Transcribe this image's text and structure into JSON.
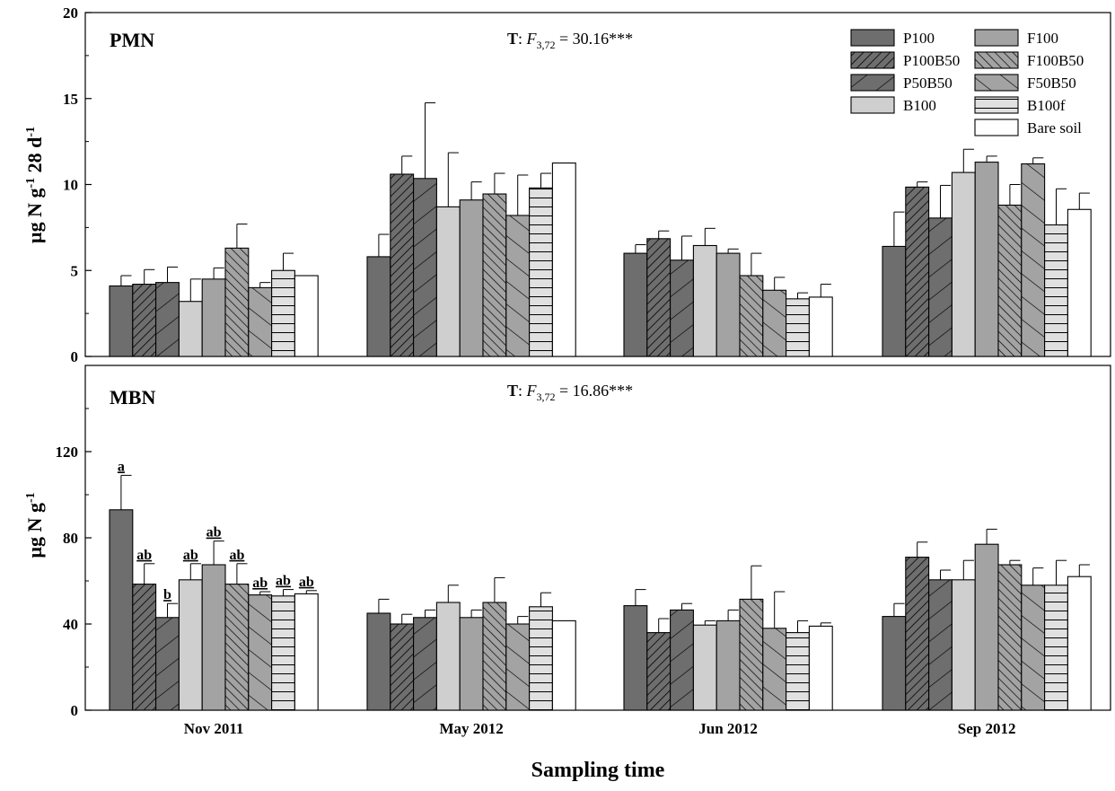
{
  "chart_data": [
    {
      "type": "bar",
      "panel_label": "PMN",
      "ylabel_main": "µg N g",
      "ylabel_sup1": "-1",
      "ylabel_mid": " 28 d",
      "ylabel_sup2": "-1",
      "stat": {
        "lead": "T",
        "colon": ": ",
        "f": "F",
        "sub": "3,72",
        "value": " = 30.16***"
      },
      "ylim": [
        0,
        20
      ],
      "yticks": [
        "0",
        "5",
        "10",
        "15",
        "20"
      ],
      "categories": [
        "Nov 2011",
        "May 2012",
        "Jun 2012",
        "Sep 2012"
      ],
      "series": [
        {
          "name": "P100",
          "values": [
            4.1,
            5.8,
            6.0,
            6.4
          ],
          "errors": [
            0.6,
            1.3,
            0.5,
            2.0
          ]
        },
        {
          "name": "P100B50",
          "values": [
            4.2,
            10.6,
            6.85,
            9.85
          ],
          "errors": [
            0.85,
            1.05,
            0.45,
            0.3
          ]
        },
        {
          "name": "P50B50",
          "values": [
            4.3,
            10.35,
            5.6,
            8.05
          ],
          "errors": [
            0.9,
            4.4,
            1.4,
            1.9
          ]
        },
        {
          "name": "B100",
          "values": [
            3.2,
            8.7,
            6.45,
            10.7
          ],
          "errors": [
            1.3,
            3.15,
            1.0,
            1.35
          ]
        },
        {
          "name": "F100",
          "values": [
            4.5,
            9.1,
            6.0,
            11.3
          ],
          "errors": [
            0.65,
            1.05,
            0.25,
            0.35
          ]
        },
        {
          "name": "F100B50",
          "values": [
            6.3,
            9.45,
            4.7,
            8.8
          ],
          "errors": [
            1.4,
            1.2,
            1.3,
            1.2
          ]
        },
        {
          "name": "F50B50",
          "values": [
            4.0,
            8.2,
            3.85,
            11.2
          ],
          "errors": [
            0.3,
            2.35,
            0.75,
            0.35
          ]
        },
        {
          "name": "B100f",
          "values": [
            5.0,
            9.8,
            3.35,
            7.65
          ],
          "errors": [
            1.0,
            0.85,
            0.35,
            2.1
          ]
        },
        {
          "name": "Bare soil",
          "values": [
            4.7,
            11.25,
            3.45,
            8.55
          ],
          "errors": [
            0.0,
            0.0,
            0.75,
            0.95
          ]
        }
      ]
    },
    {
      "type": "bar",
      "panel_label": "MBN",
      "ylabel_main": "µg N g",
      "ylabel_sup1": "-1",
      "stat": {
        "lead": "T",
        "colon": ": ",
        "f": "F",
        "sub": "3,72",
        "value": " = 16.86***"
      },
      "ylim": [
        0,
        160
      ],
      "yticks": [
        "0",
        "40",
        "80",
        "120"
      ],
      "categories": [
        "Nov 2011",
        "May 2012",
        "Jun 2012",
        "Sep 2012"
      ],
      "series": [
        {
          "name": "P100",
          "values": [
            93,
            45,
            48.5,
            43.5
          ],
          "errors": [
            16,
            6.5,
            7.5,
            6
          ]
        },
        {
          "name": "P100B50",
          "values": [
            58.5,
            40,
            36,
            71
          ],
          "errors": [
            9.5,
            4.5,
            6.5,
            7
          ]
        },
        {
          "name": "P50B50",
          "values": [
            43,
            43,
            46.5,
            60.5
          ],
          "errors": [
            6.5,
            3.5,
            3,
            4.5
          ]
        },
        {
          "name": "B100",
          "values": [
            60.5,
            50,
            39.5,
            60.5
          ],
          "errors": [
            7.5,
            8,
            2,
            9
          ]
        },
        {
          "name": "F100",
          "values": [
            67.5,
            43,
            41.5,
            77
          ],
          "errors": [
            11,
            3.5,
            5,
            7
          ]
        },
        {
          "name": "F100B50",
          "values": [
            58.5,
            50,
            51.5,
            67.5
          ],
          "errors": [
            9.5,
            11.5,
            15.5,
            2
          ]
        },
        {
          "name": "F50B50",
          "values": [
            53.5,
            40,
            38,
            58
          ],
          "errors": [
            1.5,
            3.5,
            17,
            8
          ]
        },
        {
          "name": "B100f",
          "values": [
            53,
            48,
            36,
            58
          ],
          "errors": [
            3,
            6.5,
            5.5,
            11.5
          ]
        },
        {
          "name": "Bare soil",
          "values": [
            54,
            41.5,
            39,
            62
          ],
          "errors": [
            1.5,
            0,
            1.5,
            5.5
          ]
        }
      ],
      "annotations": [
        {
          "category": "Nov 2011",
          "series": "P100",
          "text": "a"
        },
        {
          "category": "Nov 2011",
          "series": "P100B50",
          "text": "ab"
        },
        {
          "category": "Nov 2011",
          "series": "P50B50",
          "text": "b"
        },
        {
          "category": "Nov 2011",
          "series": "B100",
          "text": "ab"
        },
        {
          "category": "Nov 2011",
          "series": "F100",
          "text": "ab"
        },
        {
          "category": "Nov 2011",
          "series": "F100B50",
          "text": "ab"
        },
        {
          "category": "Nov 2011",
          "series": "F50B50",
          "text": "ab"
        },
        {
          "category": "Nov 2011",
          "series": "B100f",
          "text": "ab"
        },
        {
          "category": "Nov 2011",
          "series": "Bare soil",
          "text": "ab"
        }
      ]
    }
  ],
  "xlabel": "Sampling time",
  "legend": {
    "placement": "top-right",
    "entries": [
      "P100",
      "F100",
      "P100B50",
      "F100B50",
      "P50B50",
      "F50B50",
      "B100",
      "B100f",
      "Bare soil"
    ]
  },
  "series_styles": {
    "P100": {
      "fill": "#6e6e6e",
      "pattern": "none"
    },
    "P100B50": {
      "fill": "#6e6e6e",
      "pattern": "dense-forward-diagonal"
    },
    "P50B50": {
      "fill": "#6e6e6e",
      "pattern": "wide-forward-diagonal"
    },
    "B100": {
      "fill": "#cfcfcf",
      "pattern": "none"
    },
    "F100": {
      "fill": "#a3a3a3",
      "pattern": "none"
    },
    "F100B50": {
      "fill": "#a3a3a3",
      "pattern": "dense-backward-diagonal"
    },
    "F50B50": {
      "fill": "#a3a3a3",
      "pattern": "wide-backward-diagonal"
    },
    "B100f": {
      "fill": "#e0e0e0",
      "pattern": "horizontal-lines"
    },
    "Bare soil": {
      "fill": "#ffffff",
      "pattern": "none"
    }
  }
}
